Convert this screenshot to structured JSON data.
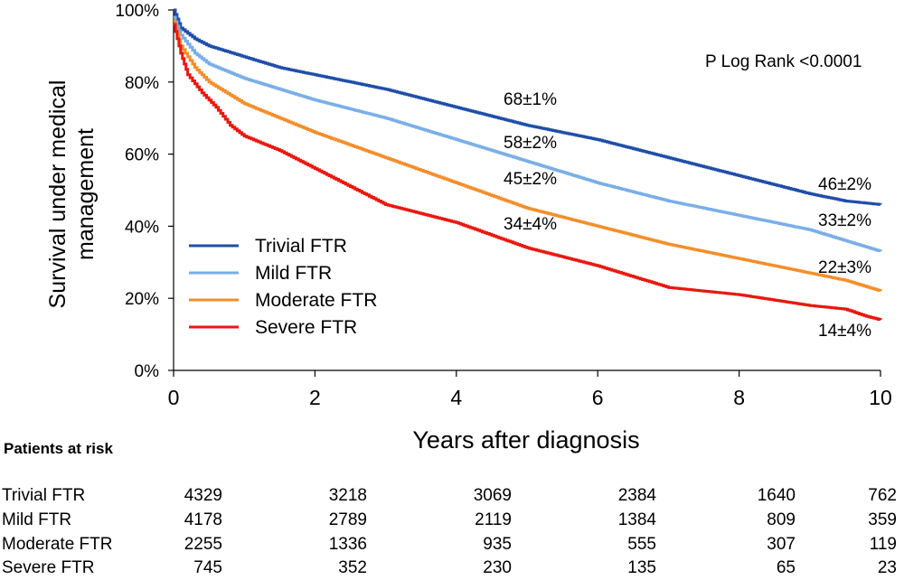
{
  "chart_data": {
    "type": "line",
    "subtype": "kaplan-meier step curves",
    "annotation": "P Log Rank <0.0001",
    "xlabel": "Years after diagnosis",
    "ylabel_lines": [
      "Survival under medical",
      "management"
    ],
    "xlim": [
      0,
      10
    ],
    "ylim": [
      0,
      100
    ],
    "x_ticks": [
      "0",
      "2",
      "4",
      "6",
      "8",
      "10"
    ],
    "y_ticks": [
      "0%",
      "20%",
      "40%",
      "60%",
      "80%",
      "100%"
    ],
    "grid": false,
    "legend_position": "lower-left",
    "series": [
      {
        "name": "Trivial FTR",
        "color": "#1f4ea8",
        "x": [
          0,
          0.1,
          0.3,
          0.5,
          1,
          1.5,
          2,
          3,
          4,
          5,
          6,
          7,
          8,
          9,
          9.5,
          10
        ],
        "y": [
          100,
          95,
          92,
          90,
          87,
          84,
          82,
          78,
          73,
          68,
          64,
          59,
          54,
          49,
          47,
          46
        ],
        "labels": [
          {
            "x": 5,
            "text": "68±1%"
          },
          {
            "x": 10,
            "text": "46±2%"
          }
        ]
      },
      {
        "name": "Mild FTR",
        "color": "#79aee8",
        "x": [
          0,
          0.1,
          0.3,
          0.5,
          1,
          1.5,
          2,
          3,
          4,
          5,
          6,
          7,
          8,
          9,
          9.5,
          10
        ],
        "y": [
          98,
          93,
          88,
          85,
          81,
          78,
          75,
          70,
          64,
          58,
          52,
          47,
          43,
          39,
          36,
          33
        ],
        "labels": [
          {
            "x": 5,
            "text": "58±2%"
          },
          {
            "x": 10,
            "text": "33±2%"
          }
        ]
      },
      {
        "name": "Moderate FTR",
        "color": "#f28e2b",
        "x": [
          0,
          0.1,
          0.3,
          0.5,
          1,
          1.5,
          2,
          3,
          4,
          5,
          6,
          7,
          8,
          9,
          9.5,
          10
        ],
        "y": [
          97,
          90,
          84,
          80,
          74,
          70,
          66,
          59,
          52,
          45,
          40,
          35,
          31,
          27,
          25,
          22
        ],
        "labels": [
          {
            "x": 5,
            "text": "45±2%"
          },
          {
            "x": 10,
            "text": "22±3%"
          }
        ]
      },
      {
        "name": "Severe FTR",
        "color": "#e8180f",
        "x": [
          0,
          0.1,
          0.2,
          0.4,
          0.6,
          0.8,
          1,
          1.5,
          2,
          3,
          4,
          5,
          6,
          7,
          8,
          9,
          9.5,
          9.8,
          10
        ],
        "y": [
          96,
          88,
          82,
          77,
          73,
          68,
          65,
          61,
          56,
          46,
          41,
          34,
          29,
          23,
          21,
          18,
          17,
          15,
          14
        ],
        "labels": [
          {
            "x": 5,
            "text": "34±4%"
          },
          {
            "x": 10,
            "text": "14±4%"
          }
        ]
      }
    ],
    "risk_table": {
      "title": "Patients at risk",
      "times": [
        0,
        2,
        4,
        6,
        8,
        10
      ],
      "rows": [
        {
          "label": "Trivial FTR",
          "values": [
            "4329",
            "3218",
            "3069",
            "2384",
            "1640",
            "762"
          ]
        },
        {
          "label": "Mild FTR",
          "values": [
            "4178",
            "2789",
            "2119",
            "1384",
            "809",
            "359"
          ]
        },
        {
          "label": "Moderate FTR",
          "values": [
            "2255",
            "1336",
            "935",
            "555",
            "307",
            "119"
          ]
        },
        {
          "label": "Severe FTR",
          "values": [
            "745",
            "352",
            "230",
            "135",
            "65",
            "23"
          ]
        }
      ]
    }
  }
}
